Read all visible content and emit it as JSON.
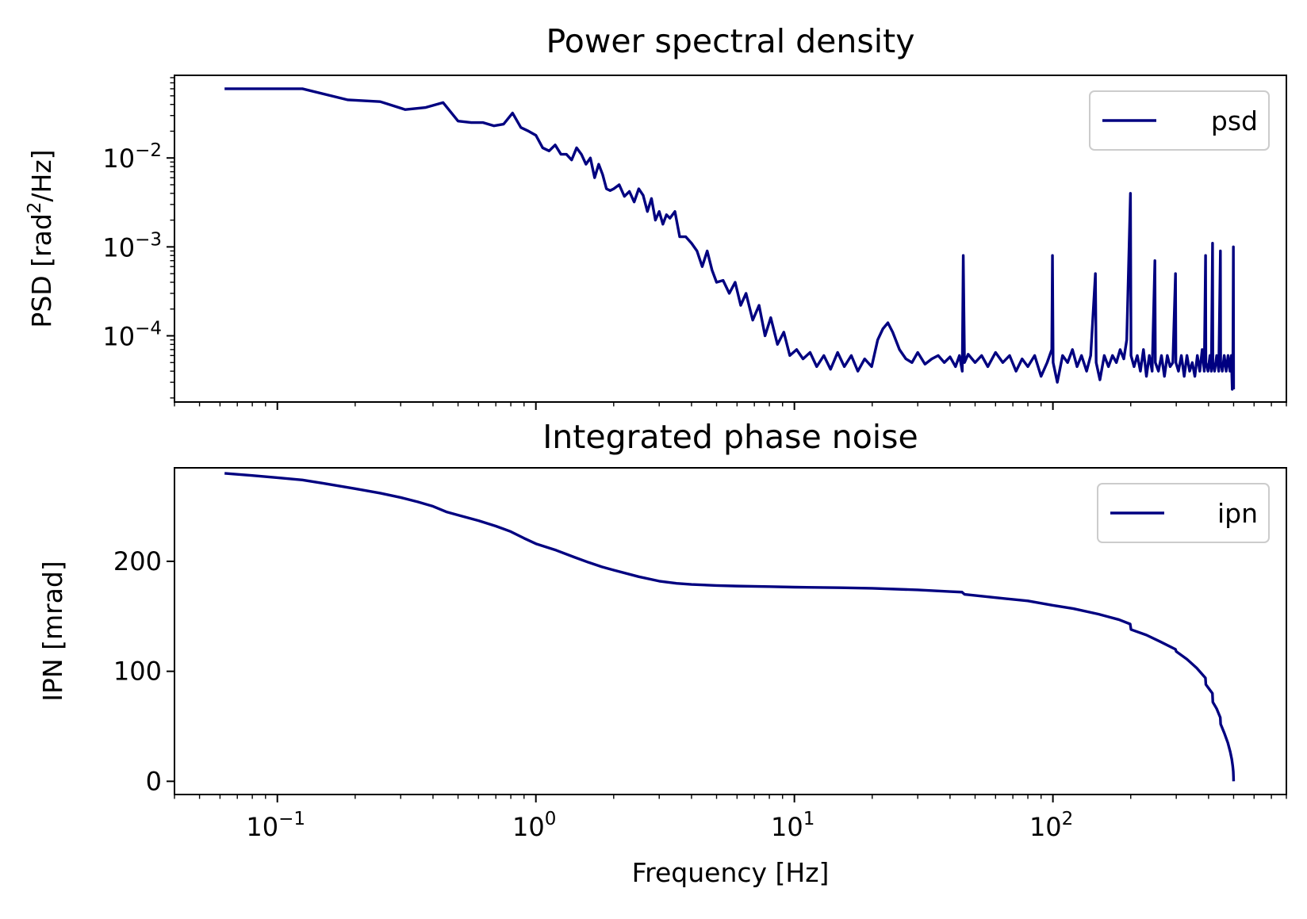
{
  "chart_data": [
    {
      "type": "line",
      "title": "Power spectral density",
      "xlabel": "",
      "ylabel": "PSD [rad²/Hz]",
      "ylabel_parts": {
        "pre": "PSD [rad",
        "sup": "2",
        "post": "/Hz]"
      },
      "xscale": "log",
      "yscale": "log",
      "xlim": [
        0.04,
        800
      ],
      "ylim": [
        1.8e-05,
        0.085
      ],
      "yticks": [
        {
          "value": 0.01,
          "base": "10",
          "exp": "−2"
        },
        {
          "value": 0.001,
          "base": "10",
          "exp": "−3"
        },
        {
          "value": 0.0001,
          "base": "10",
          "exp": "−4"
        }
      ],
      "show_x_ticklabels": false,
      "grid": false,
      "legend": {
        "placement": "upper right",
        "entries": [
          "psd"
        ]
      },
      "series": [
        {
          "name": "psd",
          "color": "#000080",
          "points": [
            [
              0.0625,
              0.06
            ],
            [
              0.125,
              0.06
            ],
            [
              0.1875,
              0.045
            ],
            [
              0.25,
              0.043
            ],
            [
              0.3125,
              0.035
            ],
            [
              0.375,
              0.037
            ],
            [
              0.4375,
              0.042
            ],
            [
              0.5,
              0.026
            ],
            [
              0.5625,
              0.025
            ],
            [
              0.625,
              0.025
            ],
            [
              0.6875,
              0.023
            ],
            [
              0.75,
              0.024
            ],
            [
              0.8125,
              0.032
            ],
            [
              0.875,
              0.022
            ],
            [
              0.9375,
              0.02
            ],
            [
              1.0,
              0.018
            ],
            [
              1.0625,
              0.013
            ],
            [
              1.125,
              0.012
            ],
            [
              1.1875,
              0.014
            ],
            [
              1.25,
              0.011
            ],
            [
              1.3125,
              0.011
            ],
            [
              1.375,
              0.0095
            ],
            [
              1.4375,
              0.013
            ],
            [
              1.5,
              0.011
            ],
            [
              1.5625,
              0.0085
            ],
            [
              1.625,
              0.01
            ],
            [
              1.6875,
              0.006
            ],
            [
              1.75,
              0.0085
            ],
            [
              1.8125,
              0.0065
            ],
            [
              1.875,
              0.0045
            ],
            [
              1.9375,
              0.0043
            ],
            [
              2.0,
              0.0045
            ],
            [
              2.1,
              0.005
            ],
            [
              2.2,
              0.0037
            ],
            [
              2.3,
              0.0042
            ],
            [
              2.4,
              0.0032
            ],
            [
              2.5,
              0.0045
            ],
            [
              2.6,
              0.0038
            ],
            [
              2.7,
              0.0025
            ],
            [
              2.8,
              0.0035
            ],
            [
              2.9,
              0.002
            ],
            [
              3.0,
              0.0025
            ],
            [
              3.1,
              0.0018
            ],
            [
              3.2,
              0.0023
            ],
            [
              3.3,
              0.0021
            ],
            [
              3.45,
              0.0025
            ],
            [
              3.6,
              0.0013
            ],
            [
              3.8,
              0.0013
            ],
            [
              4.0,
              0.0011
            ],
            [
              4.2,
              0.0009
            ],
            [
              4.4,
              0.0006
            ],
            [
              4.6,
              0.0009
            ],
            [
              4.8,
              0.00055
            ],
            [
              5.0,
              0.0004
            ],
            [
              5.3,
              0.00042
            ],
            [
              5.6,
              0.0003
            ],
            [
              5.9,
              0.0004
            ],
            [
              6.2,
              0.00022
            ],
            [
              6.5,
              0.0003
            ],
            [
              6.9,
              0.00015
            ],
            [
              7.3,
              0.00022
            ],
            [
              7.7,
              0.0001
            ],
            [
              8.1,
              0.00016
            ],
            [
              8.6,
              8e-05
            ],
            [
              9.1,
              0.00011
            ],
            [
              9.6,
              6e-05
            ],
            [
              10.2,
              7e-05
            ],
            [
              10.8,
              5.5e-05
            ],
            [
              11.5,
              6.5e-05
            ],
            [
              12.2,
              4.5e-05
            ],
            [
              13.0,
              6e-05
            ],
            [
              13.8,
              4.2e-05
            ],
            [
              14.7,
              6.5e-05
            ],
            [
              15.6,
              4.5e-05
            ],
            [
              16.6,
              6e-05
            ],
            [
              17.6,
              4e-05
            ],
            [
              18.7,
              5.5e-05
            ],
            [
              19.9,
              4.5e-05
            ],
            [
              21.0,
              9e-05
            ],
            [
              22.0,
              0.00012
            ],
            [
              23.0,
              0.00014
            ],
            [
              24.0,
              0.00011
            ],
            [
              25.5,
              7e-05
            ],
            [
              27.0,
              5.5e-05
            ],
            [
              28.5,
              5e-05
            ],
            [
              30.0,
              6.5e-05
            ],
            [
              32.0,
              4.8e-05
            ],
            [
              34.0,
              5.5e-05
            ],
            [
              36.0,
              6e-05
            ],
            [
              38.0,
              5e-05
            ],
            [
              40.0,
              5.8e-05
            ],
            [
              42.0,
              4.5e-05
            ],
            [
              43.5,
              6e-05
            ],
            [
              44.6,
              4e-05
            ],
            [
              45.0,
              0.0008
            ],
            [
              45.5,
              5e-05
            ],
            [
              47.0,
              6.2e-05
            ],
            [
              50.0,
              5e-05
            ],
            [
              53.0,
              6e-05
            ],
            [
              56.0,
              4.5e-05
            ],
            [
              60.0,
              6.5e-05
            ],
            [
              64.0,
              5e-05
            ],
            [
              68.0,
              6e-05
            ],
            [
              72.0,
              4e-05
            ],
            [
              76.0,
              5.5e-05
            ],
            [
              80.0,
              4.5e-05
            ],
            [
              85.0,
              6e-05
            ],
            [
              90.0,
              3.5e-05
            ],
            [
              95.0,
              5e-05
            ],
            [
              99.0,
              7e-05
            ],
            [
              99.6,
              0.0008
            ],
            [
              100.2,
              5e-05
            ],
            [
              104.0,
              3e-05
            ],
            [
              109.0,
              6e-05
            ],
            [
              114.0,
              5e-05
            ],
            [
              119.0,
              7e-05
            ],
            [
              124.0,
              4.5e-05
            ],
            [
              129.0,
              6e-05
            ],
            [
              135.0,
              4e-05
            ],
            [
              140.0,
              6e-05
            ],
            [
              146.0,
              0.0005
            ],
            [
              147.0,
              5e-05
            ],
            [
              152.0,
              3.2e-05
            ],
            [
              158.0,
              6e-05
            ],
            [
              164.0,
              4.5e-05
            ],
            [
              170.0,
              6e-05
            ],
            [
              176.0,
              5e-05
            ],
            [
              182.0,
              7e-05
            ],
            [
              188.0,
              5.5e-05
            ],
            [
              193.0,
              9e-05
            ],
            [
              199.5,
              0.004
            ],
            [
              200.5,
              6e-05
            ],
            [
              206.0,
              4.5e-05
            ],
            [
              212.0,
              6e-05
            ],
            [
              218.0,
              4e-05
            ],
            [
              224.0,
              7e-05
            ],
            [
              230.0,
              3.5e-05
            ],
            [
              236.0,
              6e-05
            ],
            [
              242.0,
              4e-05
            ],
            [
              248.0,
              0.0007
            ],
            [
              249.0,
              5e-05
            ],
            [
              256.0,
              4e-05
            ],
            [
              263.0,
              6e-05
            ],
            [
              270.0,
              3.5e-05
            ],
            [
              277.0,
              6e-05
            ],
            [
              284.0,
              4.5e-05
            ],
            [
              291.0,
              5e-05
            ],
            [
              298.0,
              0.0005
            ],
            [
              299.0,
              5e-05
            ],
            [
              306.0,
              4e-05
            ],
            [
              314.0,
              6e-05
            ],
            [
              322.0,
              3.5e-05
            ],
            [
              330.0,
              6e-05
            ],
            [
              338.0,
              4e-05
            ],
            [
              346.0,
              5e-05
            ],
            [
              354.0,
              3.5e-05
            ],
            [
              362.0,
              6e-05
            ],
            [
              370.0,
              4e-05
            ],
            [
              378.0,
              7e-05
            ],
            [
              385.0,
              4e-05
            ],
            [
              389.5,
              0.0008
            ],
            [
              390.5,
              5e-05
            ],
            [
              398.0,
              4e-05
            ],
            [
              405.0,
              6e-05
            ],
            [
              410.0,
              4e-05
            ],
            [
              414.5,
              0.0011
            ],
            [
              415.5,
              5e-05
            ],
            [
              422.0,
              4e-05
            ],
            [
              430.0,
              6e-05
            ],
            [
              438.0,
              4e-05
            ],
            [
              444.5,
              0.0009
            ],
            [
              445.5,
              5e-05
            ],
            [
              452.0,
              4e-05
            ],
            [
              460.0,
              6e-05
            ],
            [
              468.0,
              4e-05
            ],
            [
              476.0,
              6e-05
            ],
            [
              484.0,
              4e-05
            ],
            [
              490.0,
              6e-05
            ],
            [
              494.0,
              2.5e-05
            ],
            [
              497.0,
              6e-05
            ],
            [
              499.0,
              0.001
            ],
            [
              500.0,
              2.5e-05
            ]
          ]
        }
      ]
    },
    {
      "type": "line",
      "title": "Integrated phase noise",
      "xlabel": "Frequency [Hz]",
      "ylabel": "IPN [mrad]",
      "xscale": "log",
      "yscale": "linear",
      "xlim": [
        0.04,
        800
      ],
      "ylim": [
        -12,
        285
      ],
      "yticks": [
        0,
        100,
        200
      ],
      "xticks": [
        {
          "value": 0.1,
          "base": "10",
          "exp": "−1"
        },
        {
          "value": 1,
          "base": "10",
          "exp": "0"
        },
        {
          "value": 10,
          "base": "10",
          "exp": "1"
        },
        {
          "value": 100,
          "base": "10",
          "exp": "2"
        }
      ],
      "grid": false,
      "legend": {
        "placement": "upper right",
        "entries": [
          "ipn"
        ]
      },
      "series": [
        {
          "name": "ipn",
          "color": "#000080",
          "points": [
            [
              0.0625,
              280
            ],
            [
              0.08,
              278
            ],
            [
              0.1,
              276
            ],
            [
              0.125,
              274
            ],
            [
              0.15,
              271
            ],
            [
              0.2,
              266
            ],
            [
              0.25,
              262
            ],
            [
              0.3,
              258
            ],
            [
              0.35,
              254
            ],
            [
              0.4,
              250
            ],
            [
              0.45,
              245
            ],
            [
              0.5,
              242
            ],
            [
              0.6,
              237
            ],
            [
              0.7,
              232
            ],
            [
              0.8,
              227
            ],
            [
              0.9,
              221
            ],
            [
              1.0,
              216
            ],
            [
              1.2,
              210
            ],
            [
              1.4,
              204
            ],
            [
              1.6,
              199
            ],
            [
              1.8,
              195
            ],
            [
              2.0,
              192
            ],
            [
              2.5,
              186
            ],
            [
              3.0,
              182
            ],
            [
              3.5,
              180
            ],
            [
              4.0,
              179
            ],
            [
              5.0,
              178
            ],
            [
              6.0,
              177.5
            ],
            [
              8.0,
              177
            ],
            [
              10.0,
              176.5
            ],
            [
              15.0,
              176
            ],
            [
              20.0,
              175.5
            ],
            [
              30.0,
              174
            ],
            [
              40.0,
              172.5
            ],
            [
              44.5,
              172
            ],
            [
              45.5,
              170
            ],
            [
              60.0,
              167
            ],
            [
              80.0,
              164
            ],
            [
              100.0,
              160
            ],
            [
              120.0,
              157
            ],
            [
              150.0,
              152
            ],
            [
              180.0,
              147
            ],
            [
              199.0,
              143
            ],
            [
              200.5,
              138
            ],
            [
              230.0,
              133
            ],
            [
              260.0,
              127
            ],
            [
              298.0,
              120
            ],
            [
              300.0,
              118
            ],
            [
              330.0,
              111
            ],
            [
              360.0,
              103
            ],
            [
              389.0,
              94
            ],
            [
              390.5,
              88
            ],
            [
              414.0,
              80
            ],
            [
              415.5,
              72
            ],
            [
              430.0,
              66
            ],
            [
              444.0,
              58
            ],
            [
              445.5,
              52
            ],
            [
              460.0,
              44
            ],
            [
              475.0,
              35
            ],
            [
              485.0,
              27
            ],
            [
              492.0,
              20
            ],
            [
              496.0,
              14
            ],
            [
              498.5,
              9
            ],
            [
              499.5,
              4
            ],
            [
              500.0,
              0
            ]
          ]
        }
      ]
    }
  ]
}
